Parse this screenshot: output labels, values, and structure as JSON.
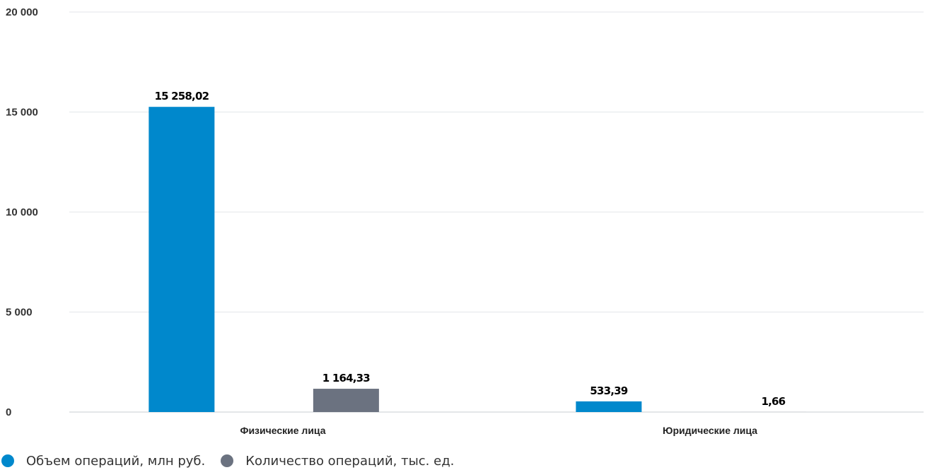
{
  "chart_data": {
    "type": "bar",
    "categories": [
      "Физические лица",
      "Юридические лица"
    ],
    "series": [
      {
        "name": "Объем операций, млн руб.",
        "values": [
          15258.02,
          533.39
        ],
        "labels": [
          "15 258,02",
          "533,39"
        ],
        "color": "#0088cc"
      },
      {
        "name": "Количество операций, тыс. ед.",
        "values": [
          1164.33,
          1.66
        ],
        "labels": [
          "1 164,33",
          "1,66"
        ],
        "color": "#6b7280"
      }
    ],
    "title": "",
    "xlabel": "",
    "ylabel": "",
    "ylim": [
      0,
      20000
    ],
    "yticks": [
      0,
      5000,
      10000,
      15000,
      20000
    ],
    "ytick_labels": [
      "0",
      "5 000",
      "10 000",
      "15 000",
      "20 000"
    ],
    "grid": true,
    "legend_position": "bottom-left"
  }
}
